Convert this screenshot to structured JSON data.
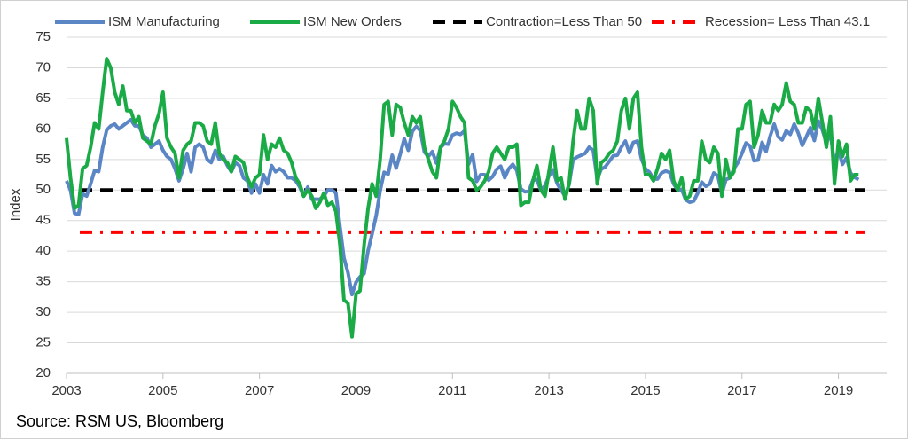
{
  "chart_data": {
    "type": "line",
    "y_label": "Index",
    "source": "Source: RSM US, Bloomberg",
    "xlim": [
      2003,
      2020
    ],
    "xticks": [
      2003,
      2005,
      2007,
      2009,
      2011,
      2013,
      2015,
      2017,
      2019
    ],
    "ylim": [
      20,
      75
    ],
    "yticks": [
      20,
      25,
      30,
      35,
      40,
      45,
      50,
      55,
      60,
      65,
      70,
      75
    ],
    "grid": true,
    "legend": "top",
    "x": [
      2003,
      2003.083,
      2003.167,
      2003.25,
      2003.333,
      2003.417,
      2003.5,
      2003.583,
      2003.667,
      2003.75,
      2003.833,
      2003.917,
      2004,
      2004.083,
      2004.167,
      2004.25,
      2004.333,
      2004.417,
      2004.5,
      2004.583,
      2004.667,
      2004.75,
      2004.833,
      2004.917,
      2005,
      2005.083,
      2005.167,
      2005.25,
      2005.333,
      2005.417,
      2005.5,
      2005.583,
      2005.667,
      2005.75,
      2005.833,
      2005.917,
      2006,
      2006.083,
      2006.167,
      2006.25,
      2006.333,
      2006.417,
      2006.5,
      2006.583,
      2006.667,
      2006.75,
      2006.833,
      2006.917,
      2007,
      2007.083,
      2007.167,
      2007.25,
      2007.333,
      2007.417,
      2007.5,
      2007.583,
      2007.667,
      2007.75,
      2007.833,
      2007.917,
      2008,
      2008.083,
      2008.167,
      2008.25,
      2008.333,
      2008.417,
      2008.5,
      2008.583,
      2008.667,
      2008.75,
      2008.833,
      2008.917,
      2009,
      2009.083,
      2009.167,
      2009.25,
      2009.333,
      2009.417,
      2009.5,
      2009.583,
      2009.667,
      2009.75,
      2009.833,
      2009.917,
      2010,
      2010.083,
      2010.167,
      2010.25,
      2010.333,
      2010.417,
      2010.5,
      2010.583,
      2010.667,
      2010.75,
      2010.833,
      2010.917,
      2011,
      2011.083,
      2011.167,
      2011.25,
      2011.333,
      2011.417,
      2011.5,
      2011.583,
      2011.667,
      2011.75,
      2011.833,
      2011.917,
      2012,
      2012.083,
      2012.167,
      2012.25,
      2012.333,
      2012.417,
      2012.5,
      2012.583,
      2012.667,
      2012.75,
      2012.833,
      2012.917,
      2013,
      2013.083,
      2013.167,
      2013.25,
      2013.333,
      2013.417,
      2013.5,
      2013.583,
      2013.667,
      2013.75,
      2013.833,
      2013.917,
      2014,
      2014.083,
      2014.167,
      2014.25,
      2014.333,
      2014.417,
      2014.5,
      2014.583,
      2014.667,
      2014.75,
      2014.833,
      2014.917,
      2015,
      2015.083,
      2015.167,
      2015.25,
      2015.333,
      2015.417,
      2015.5,
      2015.583,
      2015.667,
      2015.75,
      2015.833,
      2015.917,
      2016,
      2016.083,
      2016.167,
      2016.25,
      2016.333,
      2016.417,
      2016.5,
      2016.583,
      2016.667,
      2016.75,
      2016.833,
      2016.917,
      2017,
      2017.083,
      2017.167,
      2017.25,
      2017.333,
      2017.417,
      2017.5,
      2017.583,
      2017.667,
      2017.75,
      2017.833,
      2017.917,
      2018,
      2018.083,
      2018.167,
      2018.25,
      2018.333,
      2018.417,
      2018.5,
      2018.583,
      2018.667,
      2018.75,
      2018.833,
      2018.917,
      2019,
      2019.083,
      2019.167,
      2019.25,
      2019.333,
      2019.417
    ],
    "series": [
      {
        "name": "ISM Manufacturing",
        "color": "#5b86c5",
        "values": [
          51.5,
          50.0,
          46.2,
          46.0,
          49.4,
          49.0,
          51.0,
          53.2,
          53.0,
          57.0,
          59.8,
          60.5,
          60.8,
          60.0,
          60.5,
          61.0,
          61.5,
          60.5,
          60.5,
          59.0,
          58.5,
          57.0,
          57.5,
          58.0,
          56.5,
          55.5,
          55.0,
          53.5,
          51.5,
          53.5,
          56.0,
          53.0,
          57.0,
          57.5,
          57.0,
          55.0,
          54.5,
          56.5,
          55.0,
          55.5,
          54.0,
          53.0,
          54.5,
          54.0,
          52.0,
          51.5,
          49.5,
          51.0,
          49.5,
          52.5,
          51.0,
          54.0,
          53.0,
          53.5,
          53.0,
          52.0,
          52.0,
          51.5,
          50.5,
          49.0,
          50.5,
          48.5,
          48.5,
          48.5,
          49.0,
          50.0,
          50.0,
          49.5,
          44.0,
          38.9,
          36.5,
          32.9,
          34.9,
          35.8,
          36.3,
          40.1,
          42.8,
          45.8,
          49.9,
          52.9,
          52.6,
          55.7,
          53.6,
          55.9,
          58.4,
          56.5,
          59.6,
          60.4,
          59.7,
          56.2,
          55.5,
          56.3,
          54.4,
          56.9,
          57.6,
          57.5,
          59.0,
          59.3,
          59.1,
          59.7,
          54.2,
          55.8,
          51.4,
          52.5,
          52.5,
          51.6,
          52.2,
          53.4,
          53.9,
          52.0,
          53.5,
          54.2,
          53.2,
          50.2,
          49.7,
          49.8,
          51.6,
          51.7,
          49.9,
          50.7,
          52.3,
          53.3,
          51.1,
          50.0,
          49.0,
          50.9,
          55.0,
          55.4,
          55.7,
          56.0,
          57.0,
          56.5,
          51.8,
          53.4,
          53.8,
          54.7,
          55.6,
          55.7,
          57.0,
          58.0,
          56.1,
          57.8,
          58.0,
          55.1,
          53.5,
          52.9,
          51.8,
          51.8,
          52.8,
          53.1,
          52.9,
          51.0,
          50.0,
          50.1,
          48.4,
          48.0,
          48.2,
          49.5,
          51.3,
          50.6,
          51.0,
          52.8,
          52.3,
          49.4,
          51.7,
          52.0,
          53.5,
          54.5,
          56.0,
          57.7,
          57.2,
          54.8,
          54.9,
          57.8,
          56.3,
          58.8,
          60.8,
          58.7,
          58.2,
          59.7,
          59.1,
          60.8,
          59.3,
          57.3,
          58.7,
          60.2,
          58.1,
          61.3,
          59.8,
          57.7,
          59.3,
          54.3,
          56.6,
          54.2,
          55.3,
          52.8,
          52.1,
          51.7
        ]
      },
      {
        "name": "ISM New Orders",
        "color": "#1aab47",
        "values": [
          58.5,
          52.0,
          47.0,
          47.5,
          53.5,
          54.0,
          57.0,
          61.0,
          60.0,
          66.0,
          71.5,
          70.0,
          66.0,
          64.0,
          67.0,
          63.0,
          63.0,
          61.0,
          62.0,
          58.5,
          58.0,
          57.5,
          60.5,
          62.5,
          66.0,
          58.5,
          57.0,
          56.0,
          52.0,
          56.5,
          57.5,
          58.0,
          61.0,
          61.0,
          60.5,
          58.0,
          57.5,
          61.0,
          56.0,
          55.0,
          54.5,
          53.0,
          55.5,
          55.0,
          54.5,
          52.0,
          50.5,
          52.0,
          52.5,
          59.0,
          55.0,
          57.5,
          57.0,
          58.5,
          56.5,
          56.0,
          54.5,
          52.0,
          51.0,
          49.0,
          50.0,
          49.0,
          47.0,
          48.0,
          49.5,
          47.5,
          48.0,
          46.5,
          41.0,
          32.0,
          31.5,
          26.0,
          33.0,
          33.5,
          41.0,
          47.0,
          51.0,
          49.0,
          55.0,
          64.0,
          64.5,
          59.0,
          64.0,
          63.5,
          61.0,
          59.0,
          62.0,
          61.0,
          62.0,
          57.0,
          55.0,
          53.0,
          52.0,
          57.0,
          58.0,
          60.0,
          64.5,
          63.5,
          62.0,
          61.0,
          52.0,
          51.5,
          50.0,
          50.5,
          51.5,
          53.0,
          56.0,
          57.0,
          56.0,
          55.0,
          57.0,
          57.0,
          57.5,
          47.5,
          48.0,
          48.0,
          51.5,
          54.0,
          50.0,
          49.0,
          53.0,
          57.0,
          51.5,
          52.0,
          48.5,
          51.0,
          58.0,
          63.0,
          60.0,
          60.0,
          65.0,
          63.0,
          51.0,
          54.5,
          55.0,
          56.0,
          56.5,
          58.0,
          63.0,
          65.0,
          60.0,
          65.0,
          66.0,
          57.0,
          52.5,
          52.5,
          51.5,
          53.5,
          56.0,
          55.0,
          56.5,
          51.5,
          50.0,
          52.0,
          48.5,
          49.0,
          51.5,
          51.5,
          58.0,
          55.0,
          54.5,
          57.0,
          56.0,
          49.0,
          55.0,
          52.0,
          53.0,
          60.0,
          60.0,
          64.0,
          64.5,
          57.0,
          59.0,
          63.0,
          61.0,
          61.0,
          64.0,
          63.0,
          64.0,
          67.5,
          64.5,
          64.0,
          61.0,
          61.0,
          63.5,
          63.0,
          60.0,
          65.0,
          61.0,
          57.0,
          62.0,
          51.0,
          58.0,
          55.5,
          57.5,
          51.5,
          52.5,
          52.5
        ]
      }
    ],
    "reference_lines": [
      {
        "name": "Contraction=Less Than 50",
        "value": 50,
        "color": "#000000",
        "style": "dashed"
      },
      {
        "name": "Recession= Less Than 43.1",
        "value": 43.1,
        "color": "#ff0000",
        "style": "dash-dot"
      }
    ]
  }
}
